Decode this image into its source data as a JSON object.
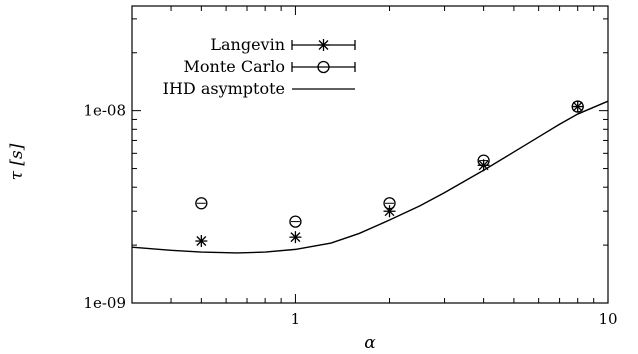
{
  "chart_data": {
    "type": "scatter",
    "title": "",
    "xlabel": "α",
    "ylabel": "τ  [s]",
    "x_scale": "log",
    "y_scale": "log",
    "xlim": [
      0.3,
      10
    ],
    "ylim": [
      1e-09,
      3.5e-08
    ],
    "x_ticks": [
      {
        "value": 1,
        "label": "1"
      },
      {
        "value": 10,
        "label": "10"
      }
    ],
    "y_ticks": [
      {
        "value": 1e-09,
        "label": "1e-09"
      },
      {
        "value": 1e-08,
        "label": "1e-08"
      }
    ],
    "grid": false,
    "legend_position": "top-left",
    "series": [
      {
        "name": "Langevin",
        "marker": "asterisk",
        "error_bars": true,
        "points": [
          {
            "x": 0.5,
            "y": 2.1e-09
          },
          {
            "x": 1,
            "y": 2.2e-09
          },
          {
            "x": 2,
            "y": 3e-09
          },
          {
            "x": 4,
            "y": 5.2e-09
          },
          {
            "x": 8,
            "y": 1.05e-08
          }
        ]
      },
      {
        "name": "Monte Carlo",
        "marker": "circle",
        "error_bars": true,
        "points": [
          {
            "x": 0.5,
            "y": 3.3e-09
          },
          {
            "x": 1,
            "y": 2.65e-09
          },
          {
            "x": 2,
            "y": 3.3e-09
          },
          {
            "x": 4,
            "y": 5.5e-09
          },
          {
            "x": 8,
            "y": 1.05e-08
          }
        ]
      },
      {
        "name": "IHD asymptote",
        "marker": "line",
        "error_bars": false,
        "points": [
          {
            "x": 0.3,
            "y": 1.95e-09
          },
          {
            "x": 0.4,
            "y": 1.88e-09
          },
          {
            "x": 0.5,
            "y": 1.84e-09
          },
          {
            "x": 0.65,
            "y": 1.82e-09
          },
          {
            "x": 0.8,
            "y": 1.84e-09
          },
          {
            "x": 1.0,
            "y": 1.9e-09
          },
          {
            "x": 1.3,
            "y": 2.05e-09
          },
          {
            "x": 1.6,
            "y": 2.3e-09
          },
          {
            "x": 2.0,
            "y": 2.7e-09
          },
          {
            "x": 2.5,
            "y": 3.2e-09
          },
          {
            "x": 3.0,
            "y": 3.75e-09
          },
          {
            "x": 4.0,
            "y": 4.9e-09
          },
          {
            "x": 5.0,
            "y": 6.1e-09
          },
          {
            "x": 6.0,
            "y": 7.3e-09
          },
          {
            "x": 7.0,
            "y": 8.5e-09
          },
          {
            "x": 8.0,
            "y": 9.6e-09
          },
          {
            "x": 10.0,
            "y": 1.12e-08
          }
        ]
      }
    ]
  }
}
